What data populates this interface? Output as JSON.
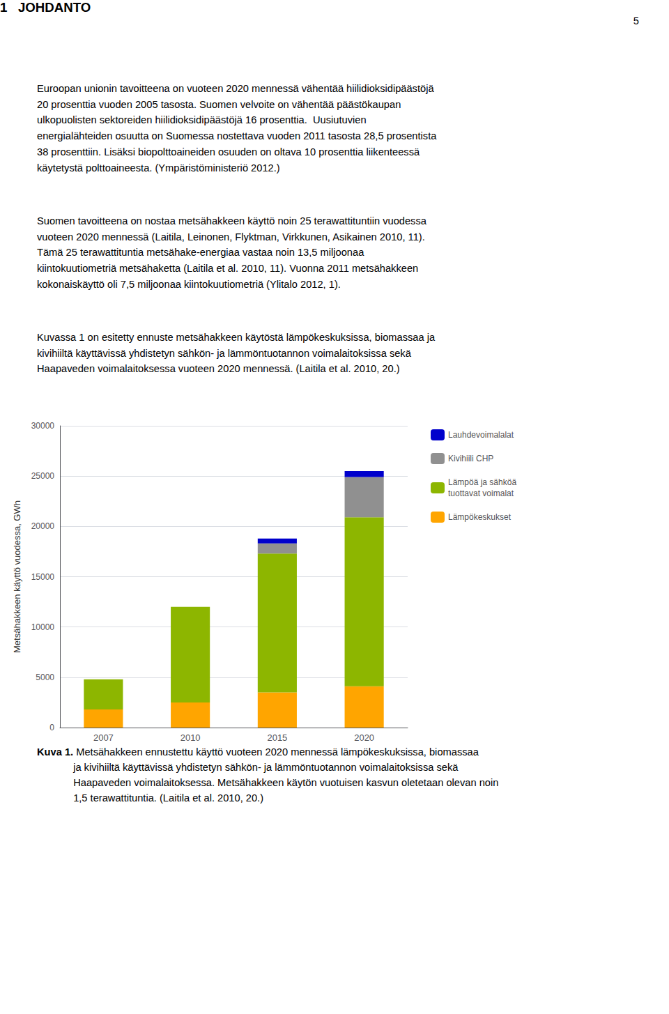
{
  "page_number": "5",
  "section_title": "1   JOHDANTO",
  "paragraphs": [
    "Euroopan unionin tavoitteena on vuoteen 2020 mennessä vähentää hiilidioksidipäästöjä\n20 prosenttia vuoden 2005 tasosta. Suomen velvoite on vähentää päästökaupan\nulkopuolisten sektoreiden hiilidioksidipäästöjä 16 prosenttia.  Uusiutuvien\nenergialähteiden osuutta on Suomessa nostettava vuoden 2011 tasosta 28,5 prosentista\n38 prosenttiin. Lisäksi biopolttoaineiden osuuden on oltava 10 prosenttia liikenteessä\nkäytetystä polttoaineesta. (Ympäristöministeriö 2012.)",
    "Suomen tavoitteena on nostaa metsähakkeen käyttö noin 25 terawattituntiin vuodessa\nvuoteen 2020 mennessä (Laitila, Leinonen, Flyktman, Virkkunen, Asikainen 2010, 11).\nTämä 25 terawattituntia metsähake-energiaa vastaa noin 13,5 miljoonaa\nkiintokuutiometriä metsähaketta (Laitila et al. 2010, 11). Vuonna 2011 metsähakkeen\nkokonaiskäyttö oli 7,5 miljoonaa kiintokuutiometriä (Ylitalo 2012, 1).",
    "Kuvassa 1 on esitetty ennuste metsähakkeen käytöstä lämpökeskuksissa, biomassaa ja\nkivihiiltä käyttävissä yhdistetyn sähkön- ja lämmöntuotannon voimalaitoksissa sekä\nHaapaveden voimalaitoksessa vuoteen 2020 mennessä. (Laitila et al. 2010, 20.)"
  ],
  "caption_bold": "Kuva 1.",
  "caption": " Metsähakkeen ennustettu käyttö vuoteen 2020 mennessä lämpökeskuksissa, biomassaa\nja kivihiiltä käyttävissä yhdistetyn sähkön- ja lämmöntuotannon voimalaitoksissa sekä\nHaapaveden voimalaitoksessa. Metsähakkeen käytön vuotuisen kasvun oletetaan olevan noin\n1,5 terawattituntia. (Laitila et al. 2010, 20.)",
  "chart_data": {
    "type": "bar",
    "stacked": true,
    "categories": [
      "2007",
      "2010",
      "2015",
      "2020"
    ],
    "series": [
      {
        "name": "Lämpökeskukset",
        "color": "#FFA500",
        "values": [
          1800,
          2500,
          3500,
          4100
        ]
      },
      {
        "name": "Lämpöä ja sähköä\ntuottavat voimalat",
        "color": "#8DB600",
        "values": [
          3000,
          9500,
          13800,
          16800
        ]
      },
      {
        "name": "Kivihiili CHP",
        "color": "#909090",
        "values": [
          0,
          0,
          1000,
          4000
        ]
      },
      {
        "name": "Lauhdevoimalalat",
        "color": "#0000CC",
        "values": [
          0,
          0,
          500,
          600
        ]
      }
    ],
    "ylabel": "Metsähakkeen käyttö vuodessa, GWh",
    "ylim": [
      0,
      30000
    ],
    "yticks": [
      0,
      5000,
      10000,
      15000,
      20000,
      25000,
      30000
    ],
    "grid": true,
    "legend": "right"
  }
}
